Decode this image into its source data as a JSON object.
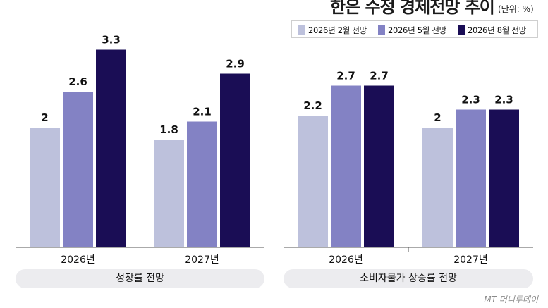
{
  "title": "한은 수정 경제전망 추이",
  "unit": "(단위: %)",
  "watermark": "MT 머니투데이",
  "colors": {
    "feb": "#bdc1dc",
    "may": "#8382c4",
    "aug": "#1a0d55"
  },
  "chart_data": [
    {
      "type": "bar",
      "title": "성장률 전망",
      "categories": [
        "2026년",
        "2027년"
      ],
      "series": [
        {
          "name": "2026년 2월 전망",
          "values": [
            2,
            1.8
          ]
        },
        {
          "name": "2026년 5월 전망",
          "values": [
            2.6,
            2.1
          ]
        },
        {
          "name": "2026년 8월 전망",
          "values": [
            3.3,
            2.9
          ]
        }
      ],
      "ylim": [
        0,
        4
      ],
      "legend": "top-right"
    },
    {
      "type": "bar",
      "title": "소비자물가 상승률 전망",
      "categories": [
        "2026년",
        "2027년"
      ],
      "series": [
        {
          "name": "2026년 2월 전망",
          "values": [
            2.2,
            2
          ]
        },
        {
          "name": "2026년 5월 전망",
          "values": [
            2.7,
            2.3
          ]
        },
        {
          "name": "2026년 8월 전망",
          "values": [
            2.7,
            2.3
          ]
        }
      ],
      "ylim": [
        0,
        4
      ]
    }
  ]
}
